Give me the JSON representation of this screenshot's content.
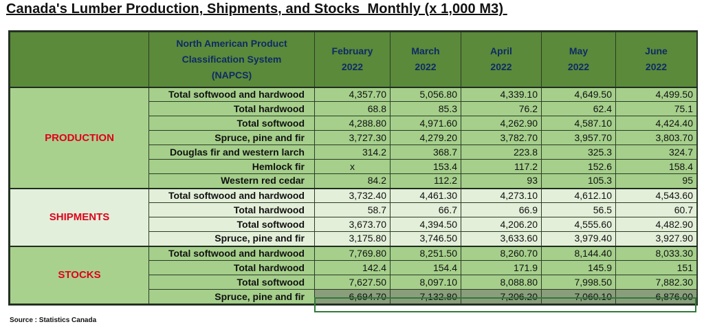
{
  "title": "Canada's Lumber Production, Shipments, and Stocks  Monthly (x 1,000 M3) ",
  "header": {
    "classification": [
      "North American Product",
      "Classification System",
      "(NAPCS)"
    ],
    "months": [
      {
        "month": "February",
        "year": "2022"
      },
      {
        "month": "March",
        "year": "2022"
      },
      {
        "month": "April",
        "year": "2022"
      },
      {
        "month": "May",
        "year": "2022"
      },
      {
        "month": "June",
        "year": "2022"
      }
    ]
  },
  "sections": [
    {
      "name": "PRODUCTION",
      "rows": [
        {
          "label": "Total softwood and hardwood",
          "values": [
            "4,357.70",
            "5,056.80",
            "4,339.10",
            "4,649.50",
            "4,499.50"
          ]
        },
        {
          "label": "Total hardwood",
          "values": [
            "68.8",
            "85.3",
            "76.2",
            "62.4",
            "75.1"
          ]
        },
        {
          "label": "Total softwood",
          "values": [
            "4,288.80",
            "4,971.60",
            "4,262.90",
            "4,587.10",
            "4,424.40"
          ]
        },
        {
          "label": "Spruce, pine and fir",
          "values": [
            "3,727.30",
            "4,279.20",
            "3,782.70",
            "3,957.70",
            "3,803.70"
          ]
        },
        {
          "label": "Douglas fir and western larch",
          "values": [
            "314.2",
            "368.7",
            "223.8",
            "325.3",
            "324.7"
          ]
        },
        {
          "label": "Hemlock fir",
          "values": [
            "x",
            "153.4",
            "117.2",
            "152.6",
            "158.4"
          ]
        },
        {
          "label": "Western red cedar",
          "values": [
            "84.2",
            "112.2",
            "93",
            "105.3",
            "95"
          ]
        }
      ]
    },
    {
      "name": "SHIPMENTS",
      "rows": [
        {
          "label": "Total softwood and hardwood",
          "values": [
            "3,732.40",
            "4,461.30",
            "4,273.10",
            "4,612.10",
            "4,543.60"
          ]
        },
        {
          "label": "Total hardwood",
          "values": [
            "58.7",
            "66.7",
            "66.9",
            "56.5",
            "60.7"
          ]
        },
        {
          "label": "Total softwood",
          "values": [
            "3,673.70",
            "4,394.50",
            "4,206.20",
            "4,555.60",
            "4,482.90"
          ]
        },
        {
          "label": "Spruce, pine and fir",
          "values": [
            "3,175.80",
            "3,746.50",
            "3,633.60",
            "3,979.40",
            "3,927.90"
          ]
        }
      ]
    },
    {
      "name": "STOCKS",
      "rows": [
        {
          "label": "Total softwood and hardwood",
          "values": [
            "7,769.80",
            "8,251.50",
            "8,260.70",
            "8,144.40",
            "8,033.30"
          ]
        },
        {
          "label": "Total hardwood",
          "values": [
            "142.4",
            "154.4",
            "171.9",
            "145.9",
            "151"
          ]
        },
        {
          "label": "Total softwood",
          "values": [
            "7,627.50",
            "8,097.10",
            "8,088.80",
            "7,998.50",
            "7,882.30"
          ]
        },
        {
          "label": "Spruce, pine and fir",
          "values": [
            "6,694.70",
            "7,132.80",
            "7,206.20",
            "7,060.10",
            "6,876.00"
          ]
        }
      ]
    }
  ],
  "source": "Source : Statistics Canada",
  "colors": {
    "header_bg": "#5a8a3a",
    "header_text": "#0f2a66",
    "production_bg": "#a5cf8b",
    "shipments_bg": "#e3efd9",
    "stocks_bg": "#a5cf8b",
    "section_label": "#e0001b",
    "selection_border": "#2f7a3a"
  }
}
